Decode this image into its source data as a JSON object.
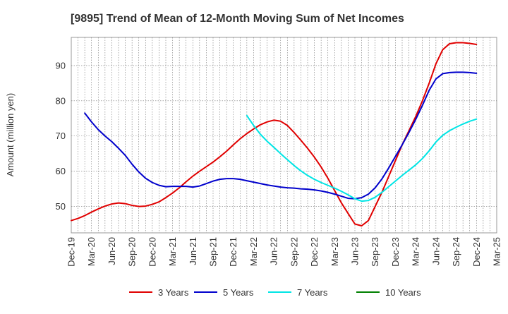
{
  "chart_data": {
    "type": "line",
    "title": "[9895]  Trend of Mean of 12-Month Moving Sum of Net Incomes",
    "xlabel": "",
    "ylabel": "Amount (million yen)",
    "ylim": [
      42.5,
      98
    ],
    "yticks": [
      50,
      60,
      70,
      80,
      90
    ],
    "x_range": [
      "2019-12",
      "2025-03"
    ],
    "xticks": [
      "Dec-19",
      "Mar-20",
      "Jun-20",
      "Sep-20",
      "Dec-20",
      "Mar-21",
      "Jun-21",
      "Sep-21",
      "Dec-21",
      "Mar-22",
      "Jun-22",
      "Sep-22",
      "Dec-22",
      "Mar-23",
      "Jun-23",
      "Sep-23",
      "Dec-23",
      "Mar-24",
      "Jun-24",
      "Sep-24",
      "Dec-24",
      "Mar-25"
    ],
    "grid": true,
    "legend_position": "bottom",
    "series": [
      {
        "name": "3 Years",
        "color": "#e00000",
        "points": [
          [
            "2019-12",
            46.0
          ],
          [
            "2020-01",
            46.6
          ],
          [
            "2020-02",
            47.4
          ],
          [
            "2020-03",
            48.4
          ],
          [
            "2020-04",
            49.3
          ],
          [
            "2020-05",
            50.1
          ],
          [
            "2020-06",
            50.7
          ],
          [
            "2020-07",
            51.0
          ],
          [
            "2020-08",
            50.8
          ],
          [
            "2020-09",
            50.3
          ],
          [
            "2020-10",
            50.0
          ],
          [
            "2020-11",
            50.1
          ],
          [
            "2020-12",
            50.6
          ],
          [
            "2020-13",
            51.3
          ],
          [
            "2021-02",
            52.5
          ],
          [
            "2021-03",
            53.8
          ],
          [
            "2021-04",
            55.3
          ],
          [
            "2021-05",
            57.0
          ],
          [
            "2021-06",
            58.6
          ],
          [
            "2021-07",
            60.0
          ],
          [
            "2021-08",
            61.3
          ],
          [
            "2021-09",
            62.6
          ],
          [
            "2021-10",
            64.1
          ],
          [
            "2021-11",
            65.7
          ],
          [
            "2021-12",
            67.5
          ],
          [
            "2022-01",
            69.2
          ],
          [
            "2022-02",
            70.7
          ],
          [
            "2022-03",
            72.0
          ],
          [
            "2022-04",
            73.2
          ],
          [
            "2022-05",
            74.0
          ],
          [
            "2022-06",
            74.5
          ],
          [
            "2022-07",
            74.2
          ],
          [
            "2022-08",
            73.0
          ],
          [
            "2022-09",
            71.0
          ],
          [
            "2022-10",
            68.8
          ],
          [
            "2022-11",
            66.5
          ],
          [
            "2022-12",
            64.0
          ],
          [
            "2023-01",
            61.2
          ],
          [
            "2023-02",
            58.0
          ],
          [
            "2023-03",
            54.5
          ],
          [
            "2023-04",
            51.0
          ],
          [
            "2023-05",
            48.0
          ],
          [
            "2023-06",
            45.0
          ],
          [
            "2023-07",
            44.5
          ],
          [
            "2023-08",
            46.0
          ],
          [
            "2023-09",
            50.0
          ],
          [
            "2023-10",
            54.0
          ],
          [
            "2023-11",
            58.5
          ],
          [
            "2023-12",
            63.0
          ],
          [
            "2024-01",
            67.5
          ],
          [
            "2024-02",
            71.5
          ],
          [
            "2024-03",
            75.5
          ],
          [
            "2024-04",
            80.0
          ],
          [
            "2024-05",
            85.0
          ],
          [
            "2024-06",
            90.5
          ],
          [
            "2024-07",
            94.5
          ],
          [
            "2024-08",
            96.2
          ],
          [
            "2024-09",
            96.5
          ],
          [
            "2024-10",
            96.5
          ],
          [
            "2024-11",
            96.3
          ],
          [
            "2024-12",
            96.0
          ]
        ]
      },
      {
        "name": "5 Years",
        "color": "#0000cc",
        "points": [
          [
            "2020-02",
            76.5
          ],
          [
            "2020-03",
            74.0
          ],
          [
            "2020-04",
            71.8
          ],
          [
            "2020-05",
            70.0
          ],
          [
            "2020-06",
            68.4
          ],
          [
            "2020-07",
            66.5
          ],
          [
            "2020-08",
            64.5
          ],
          [
            "2020-09",
            62.0
          ],
          [
            "2020-10",
            59.8
          ],
          [
            "2020-11",
            58.0
          ],
          [
            "2020-12",
            56.8
          ],
          [
            "2021-01",
            56.0
          ],
          [
            "2021-02",
            55.6
          ],
          [
            "2021-03",
            55.7
          ],
          [
            "2021-04",
            55.7
          ],
          [
            "2021-05",
            55.7
          ],
          [
            "2021-06",
            55.5
          ],
          [
            "2021-07",
            55.8
          ],
          [
            "2021-08",
            56.5
          ],
          [
            "2021-09",
            57.2
          ],
          [
            "2021-10",
            57.7
          ],
          [
            "2021-11",
            57.9
          ],
          [
            "2021-12",
            57.9
          ],
          [
            "2022-01",
            57.7
          ],
          [
            "2022-02",
            57.3
          ],
          [
            "2022-03",
            56.9
          ],
          [
            "2022-04",
            56.5
          ],
          [
            "2022-05",
            56.1
          ],
          [
            "2022-06",
            55.8
          ],
          [
            "2022-07",
            55.5
          ],
          [
            "2022-08",
            55.3
          ],
          [
            "2022-09",
            55.2
          ],
          [
            "2022-10",
            55.0
          ],
          [
            "2022-11",
            54.9
          ],
          [
            "2022-12",
            54.7
          ],
          [
            "2023-01",
            54.4
          ],
          [
            "2023-02",
            54.0
          ],
          [
            "2023-03",
            53.5
          ],
          [
            "2023-04",
            52.9
          ],
          [
            "2023-05",
            52.3
          ],
          [
            "2023-06",
            52.2
          ],
          [
            "2023-07",
            52.5
          ],
          [
            "2023-08",
            53.5
          ],
          [
            "2023-09",
            55.3
          ],
          [
            "2023-10",
            57.8
          ],
          [
            "2023-11",
            60.9
          ],
          [
            "2023-12",
            64.2
          ],
          [
            "2024-01",
            67.5
          ],
          [
            "2024-02",
            71.0
          ],
          [
            "2024-03",
            74.7
          ],
          [
            "2024-04",
            78.7
          ],
          [
            "2024-05",
            83.0
          ],
          [
            "2024-06",
            86.2
          ],
          [
            "2024-07",
            87.7
          ],
          [
            "2024-08",
            88.0
          ],
          [
            "2024-09",
            88.1
          ],
          [
            "2024-10",
            88.1
          ],
          [
            "2024-11",
            88.0
          ],
          [
            "2024-12",
            87.8
          ]
        ]
      },
      {
        "name": "7 Years",
        "color": "#00e5e5",
        "points": [
          [
            "2022-02",
            75.8
          ],
          [
            "2022-03",
            73.0
          ],
          [
            "2022-04",
            70.5
          ],
          [
            "2022-05",
            68.5
          ],
          [
            "2022-06",
            66.8
          ],
          [
            "2022-07",
            65.0
          ],
          [
            "2022-08",
            63.3
          ],
          [
            "2022-09",
            61.6
          ],
          [
            "2022-10",
            60.1
          ],
          [
            "2022-11",
            58.8
          ],
          [
            "2022-12",
            57.7
          ],
          [
            "2023-01",
            56.8
          ],
          [
            "2023-02",
            56.0
          ],
          [
            "2023-03",
            55.2
          ],
          [
            "2023-04",
            54.3
          ],
          [
            "2023-05",
            53.3
          ],
          [
            "2023-06",
            52.2
          ],
          [
            "2023-07",
            51.5
          ],
          [
            "2023-08",
            51.7
          ],
          [
            "2023-09",
            52.6
          ],
          [
            "2023-10",
            54.0
          ],
          [
            "2023-11",
            55.6
          ],
          [
            "2023-12",
            57.2
          ],
          [
            "2024-01",
            58.8
          ],
          [
            "2024-02",
            60.3
          ],
          [
            "2024-03",
            61.8
          ],
          [
            "2024-04",
            63.6
          ],
          [
            "2024-05",
            65.8
          ],
          [
            "2024-06",
            68.3
          ],
          [
            "2024-07",
            70.2
          ],
          [
            "2024-08",
            71.5
          ],
          [
            "2024-09",
            72.5
          ],
          [
            "2024-10",
            73.4
          ],
          [
            "2024-11",
            74.2
          ],
          [
            "2024-12",
            74.8
          ]
        ]
      },
      {
        "name": "10 Years",
        "color": "#008000",
        "points": []
      }
    ]
  }
}
